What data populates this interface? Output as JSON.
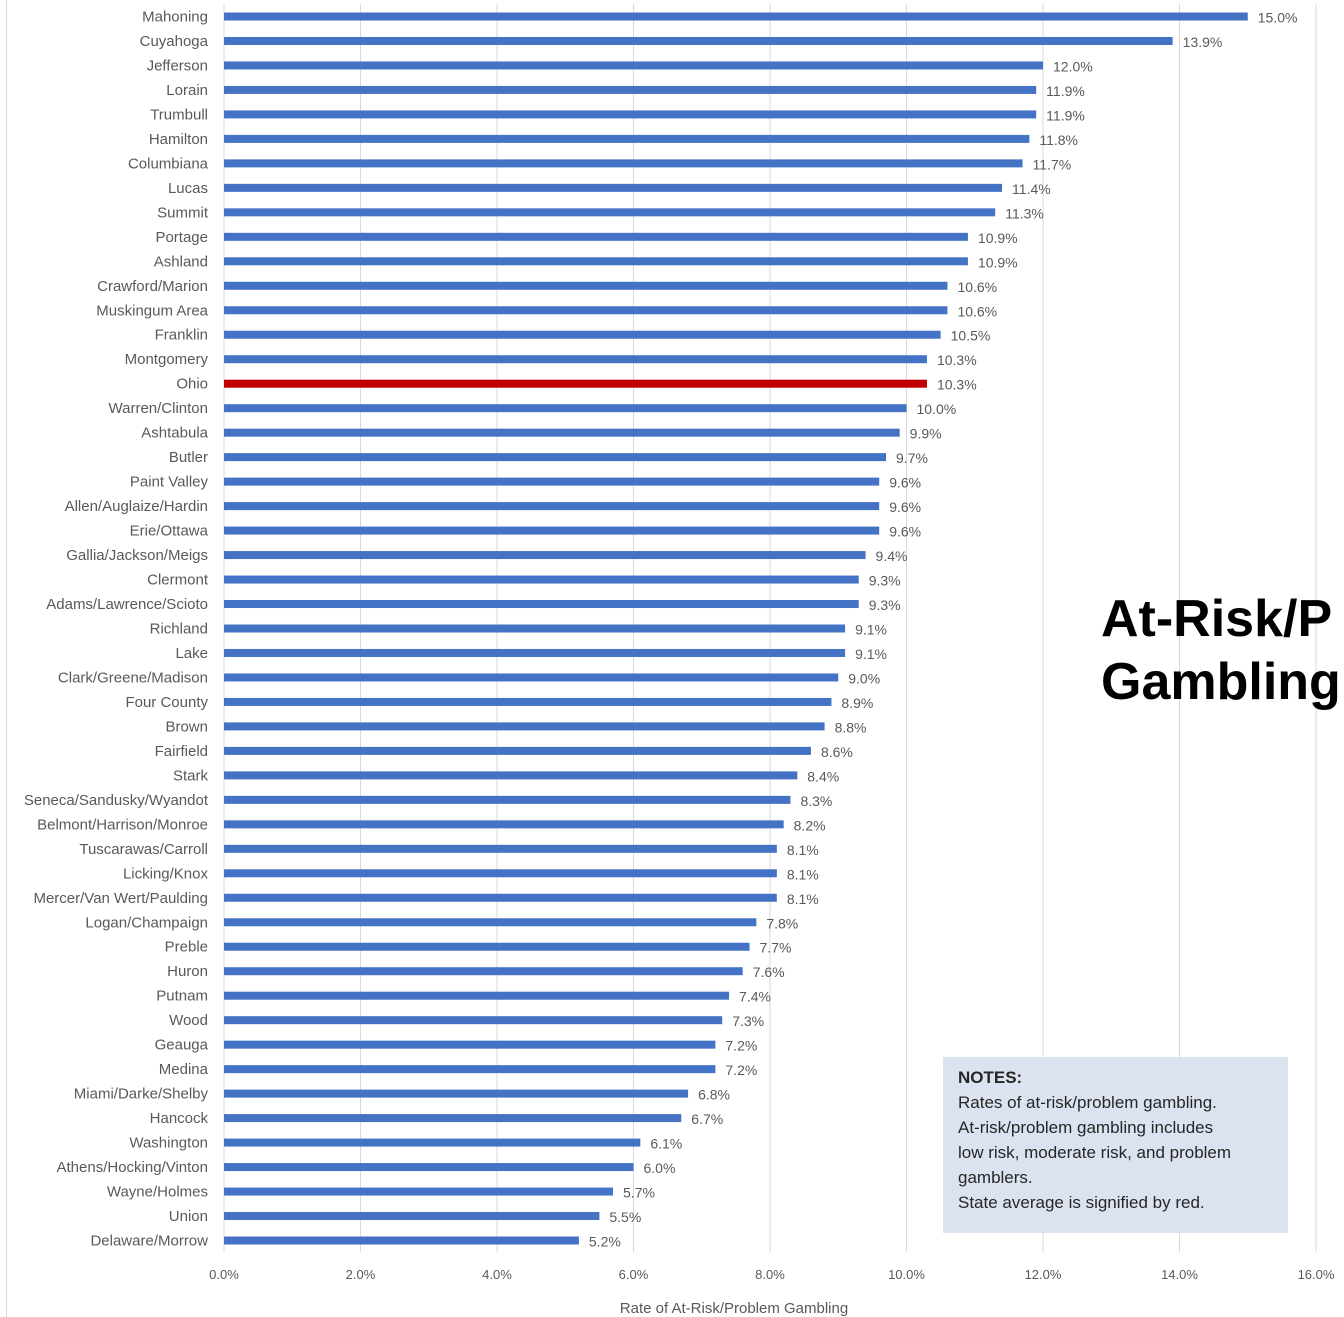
{
  "chart_data": {
    "type": "bar",
    "orientation": "horizontal",
    "xlabel": "Rate of At-Risk/Problem Gambling",
    "xlim": [
      0,
      16
    ],
    "xticks": [
      "0.0%",
      "2.0%",
      "4.0%",
      "6.0%",
      "8.0%",
      "10.0%",
      "12.0%",
      "14.0%",
      "16.0%"
    ],
    "grid": "vertical",
    "bar_color": "#4472c4",
    "highlight_color": "#c00000",
    "highlight_category": "Ohio",
    "categories": [
      "Mahoning",
      "Cuyahoga",
      "Jefferson",
      "Lorain",
      "Trumbull",
      "Hamilton",
      "Columbiana",
      "Lucas",
      "Summit",
      "Portage",
      "Ashland",
      "Crawford/Marion",
      "Muskingum Area",
      "Franklin",
      "Montgomery",
      "Ohio",
      "Warren/Clinton",
      "Ashtabula",
      "Butler",
      "Paint Valley",
      "Allen/Auglaize/Hardin",
      "Erie/Ottawa",
      "Gallia/Jackson/Meigs",
      "Clermont",
      "Adams/Lawrence/Scioto",
      "Richland",
      "Lake",
      "Clark/Greene/Madison",
      "Four County",
      "Brown",
      "Fairfield",
      "Stark",
      "Seneca/Sandusky/Wyandot",
      "Belmont/Harrison/Monroe",
      "Tuscarawas/Carroll",
      "Licking/Knox",
      "Mercer/Van Wert/Paulding",
      "Logan/Champaign",
      "Preble",
      "Huron",
      "Putnam",
      "Wood",
      "Geauga",
      "Medina",
      "Miami/Darke/Shelby",
      "Hancock",
      "Washington",
      "Athens/Hocking/Vinton",
      "Wayne/Holmes",
      "Union",
      "Delaware/Morrow"
    ],
    "values": [
      15.0,
      13.9,
      12.0,
      11.9,
      11.9,
      11.8,
      11.7,
      11.4,
      11.3,
      10.9,
      10.9,
      10.6,
      10.6,
      10.5,
      10.3,
      10.3,
      10.0,
      9.9,
      9.7,
      9.6,
      9.6,
      9.6,
      9.4,
      9.3,
      9.3,
      9.1,
      9.1,
      9.0,
      8.9,
      8.8,
      8.6,
      8.4,
      8.3,
      8.2,
      8.1,
      8.1,
      8.1,
      7.8,
      7.7,
      7.6,
      7.4,
      7.3,
      7.2,
      7.2,
      6.8,
      6.7,
      6.1,
      6.0,
      5.7,
      5.5,
      5.2
    ],
    "value_labels": [
      "15.0%",
      "13.9%",
      "12.0%",
      "11.9%",
      "11.9%",
      "11.8%",
      "11.7%",
      "11.4%",
      "11.3%",
      "10.9%",
      "10.9%",
      "10.6%",
      "10.6%",
      "10.5%",
      "10.3%",
      "10.3%",
      "10.0%",
      "9.9%",
      "9.7%",
      "9.6%",
      "9.6%",
      "9.6%",
      "9.4%",
      "9.3%",
      "9.3%",
      "9.1%",
      "9.1%",
      "9.0%",
      "8.9%",
      "8.8%",
      "8.6%",
      "8.4%",
      "8.3%",
      "8.2%",
      "8.1%",
      "8.1%",
      "8.1%",
      "7.8%",
      "7.7%",
      "7.6%",
      "7.4%",
      "7.3%",
      "7.2%",
      "7.2%",
      "6.8%",
      "6.7%",
      "6.1%",
      "6.0%",
      "5.7%",
      "5.5%",
      "5.2%"
    ]
  },
  "title": {
    "line1": "At-Risk/P",
    "line2": "Gambling"
  },
  "notes": {
    "heading": "NOTES:",
    "lines": [
      "Rates of at-risk/problem gambling.",
      "At-risk/problem gambling includes",
      "low risk, moderate risk, and problem",
      "gamblers.",
      "State average is signified by red."
    ]
  }
}
